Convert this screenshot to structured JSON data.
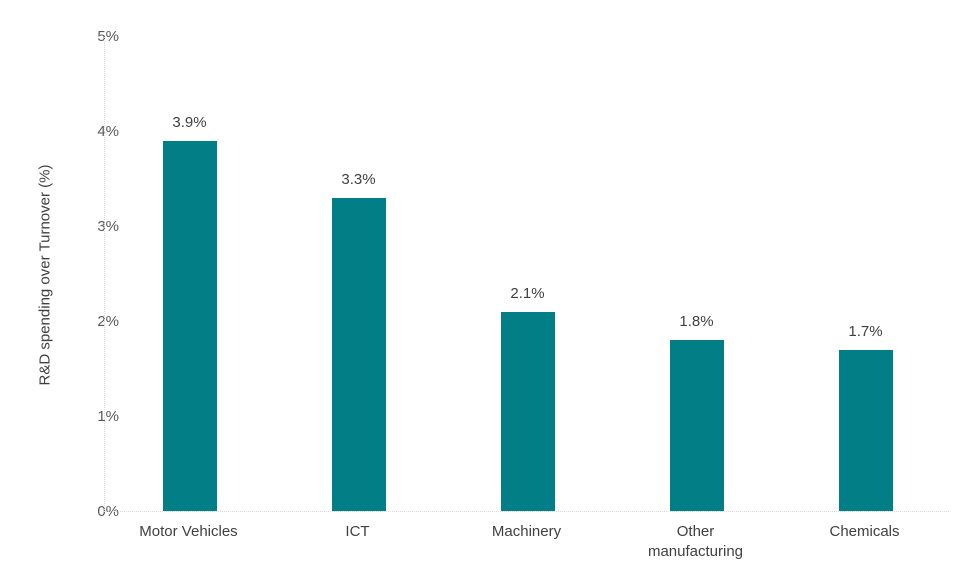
{
  "chart_data": {
    "type": "bar",
    "categories": [
      "Motor Vehicles",
      "ICT",
      "Machinery",
      "Other manufacturing",
      "Chemicals"
    ],
    "values": [
      3.9,
      3.3,
      2.1,
      1.8,
      1.7
    ],
    "data_labels": [
      "3.9%",
      "3.3%",
      "2.1%",
      "1.8%",
      "1.7%"
    ],
    "title": "",
    "xlabel": "",
    "ylabel": "R&D spending over Turnover (%)",
    "ylim": [
      0,
      5
    ],
    "yticks": [
      0,
      1,
      2,
      3,
      4,
      5
    ],
    "ytick_labels": [
      "0%",
      "1%",
      "2%",
      "3%",
      "4%",
      "5%"
    ],
    "grid": false,
    "legend": false,
    "colors": {
      "bar_fill": "#027E87",
      "value_label": "#404040",
      "tick_label": "#595959",
      "category_label": "#404040",
      "axis_title": "#404040",
      "axis_line": "#d9d9d9"
    }
  }
}
